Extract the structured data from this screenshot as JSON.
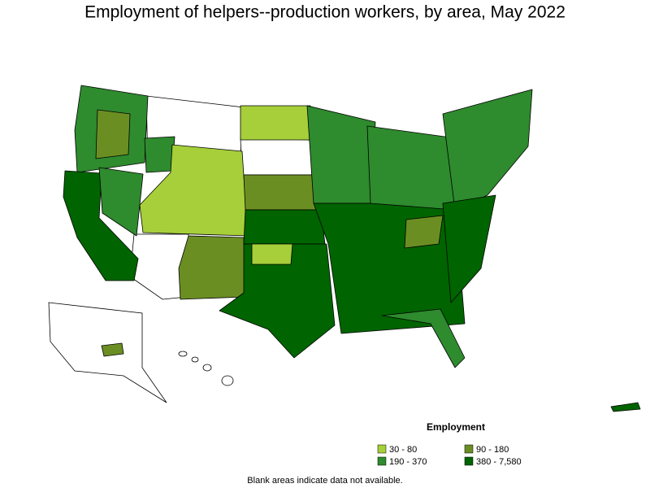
{
  "title": "Employment of helpers--production workers, by area, May 2022",
  "legend": {
    "title": "Employment",
    "items": [
      {
        "label": "30 - 80",
        "color": "#a6cf3a"
      },
      {
        "label": "90 - 180",
        "color": "#6b8e23"
      },
      {
        "label": "190 - 370",
        "color": "#2e8b2e"
      },
      {
        "label": "380 - 7,580",
        "color": "#006400"
      }
    ]
  },
  "note": "Blank areas indicate data not available."
}
